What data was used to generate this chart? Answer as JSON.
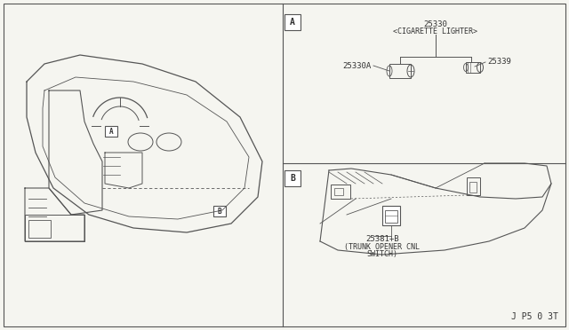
{
  "bg_color": "#f5f5f0",
  "border_color": "#bbbbbb",
  "line_color": "#555555",
  "text_color": "#333333",
  "title_ref": "J P5 0 3T",
  "panel_A_label": "A",
  "panel_B_label": "B",
  "part_25330_label": "25330",
  "part_25330_sublabel": "<CIGARETTE LIGHTER>",
  "part_25339_label": "25339",
  "part_25330A_label": "25330A",
  "part_25381_label": "25381+B",
  "part_25381_sublabel1": "(TRUNK OPENER CNL",
  "part_25381_sublabel2": "SWITCH)",
  "font_size_label": 7,
  "font_size_part": 6.5,
  "font_size_ref": 7
}
